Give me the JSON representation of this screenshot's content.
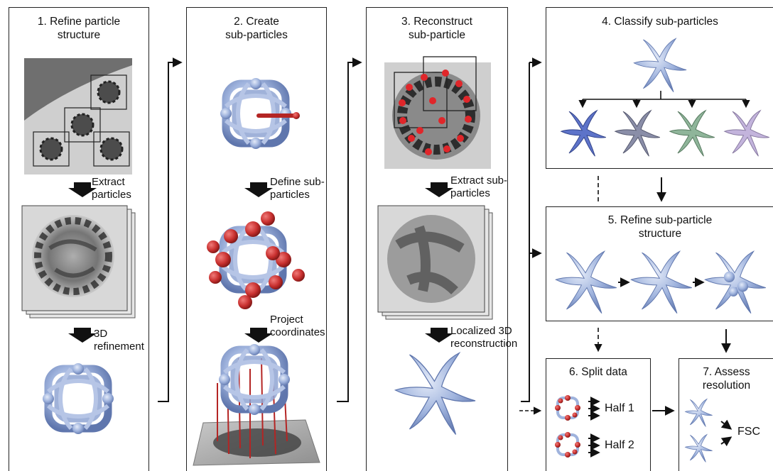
{
  "steps": [
    {
      "num": "1.",
      "title_line1": "Refine particle",
      "title_line2": "structure",
      "labels": [
        {
          "line1": "Extract",
          "line2": "particles"
        },
        {
          "line1": "3D",
          "line2": "refinement"
        }
      ]
    },
    {
      "num": "2.",
      "title_line1": "Create",
      "title_line2": "sub-particles",
      "labels": [
        {
          "line1": "Define sub-",
          "line2": "particles"
        },
        {
          "line1": "Project",
          "line2": "coordinates"
        }
      ]
    },
    {
      "num": "3.",
      "title_line1": "Reconstruct",
      "title_line2": "sub-particle",
      "labels": [
        {
          "line1": "Extract sub-",
          "line2": "particles"
        },
        {
          "line1": "Localized 3D",
          "line2": "reconstruction"
        }
      ]
    },
    {
      "num": "4.",
      "title_line1": "Classify sub-particles",
      "title_line2": ""
    },
    {
      "num": "5.",
      "title_line1": "Refine sub-particle",
      "title_line2": "structure"
    },
    {
      "num": "6.",
      "title_line1": "Split data",
      "title_line2": "",
      "labels": [
        {
          "line1": "Half 1"
        },
        {
          "line1": "Half 2"
        }
      ]
    },
    {
      "num": "7.",
      "title_line1": "Assess",
      "title_line2": "resolution",
      "labels": [
        {
          "line1": "FSC"
        }
      ]
    }
  ],
  "colors": {
    "structure": "#9fb3dd",
    "structure_dark": "#6f86bb",
    "marker_red": "#c8302f",
    "micrograph_bg": "#777777",
    "micrograph_light": "#d2d2d2",
    "class_colors": [
      "#5d73c9",
      "#8a8ea8",
      "#8fb59a",
      "#c3b4dc"
    ]
  }
}
